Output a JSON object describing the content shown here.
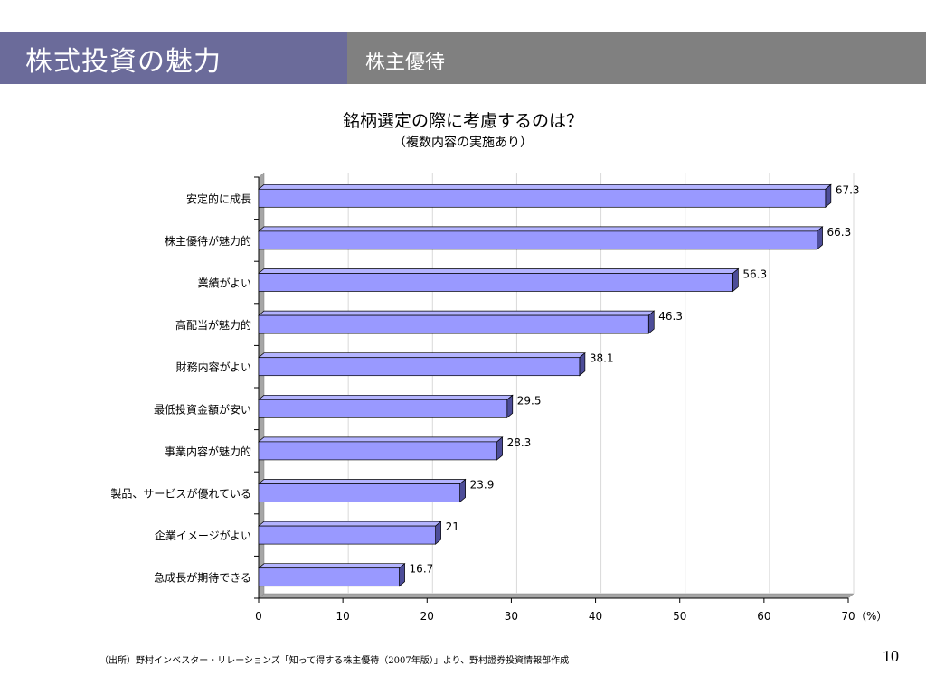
{
  "header": {
    "title": "株式投資の魅力",
    "subtitle": "株主優待"
  },
  "chart_data": {
    "type": "bar",
    "orientation": "horizontal",
    "title": "銘柄選定の際に考慮するのは？",
    "subtitle": "（複数内容の実施あり）",
    "categories": [
      "安定的に成長",
      "株主優待が魅力的",
      "業績がよい",
      "高配当が魅力的",
      "財務内容がよい",
      "最低投資金額が安い",
      "事業内容が魅力的",
      "製品、サービスが優れている",
      "企業イメージがよい",
      "急成長が期待できる"
    ],
    "values": [
      67.3,
      66.3,
      56.3,
      46.3,
      38.1,
      29.5,
      28.3,
      23.9,
      21,
      16.7
    ],
    "value_labels": [
      "67.3",
      "66.3",
      "56.3",
      "46.3",
      "38.1",
      "29.5",
      "28.3",
      "23.9",
      "21",
      "16.7"
    ],
    "xlim": [
      0,
      70
    ],
    "xticks": [
      "0",
      "10",
      "20",
      "30",
      "40",
      "50",
      "60",
      "70"
    ],
    "x_unit": "（%）",
    "grid": true,
    "bar_color": "#9999ff"
  },
  "footer": {
    "source": "（出所）野村インベスター・リレーションズ「知って得する株主優待（2007年版）」より、野村證券投資情報部作成",
    "page": "10"
  }
}
